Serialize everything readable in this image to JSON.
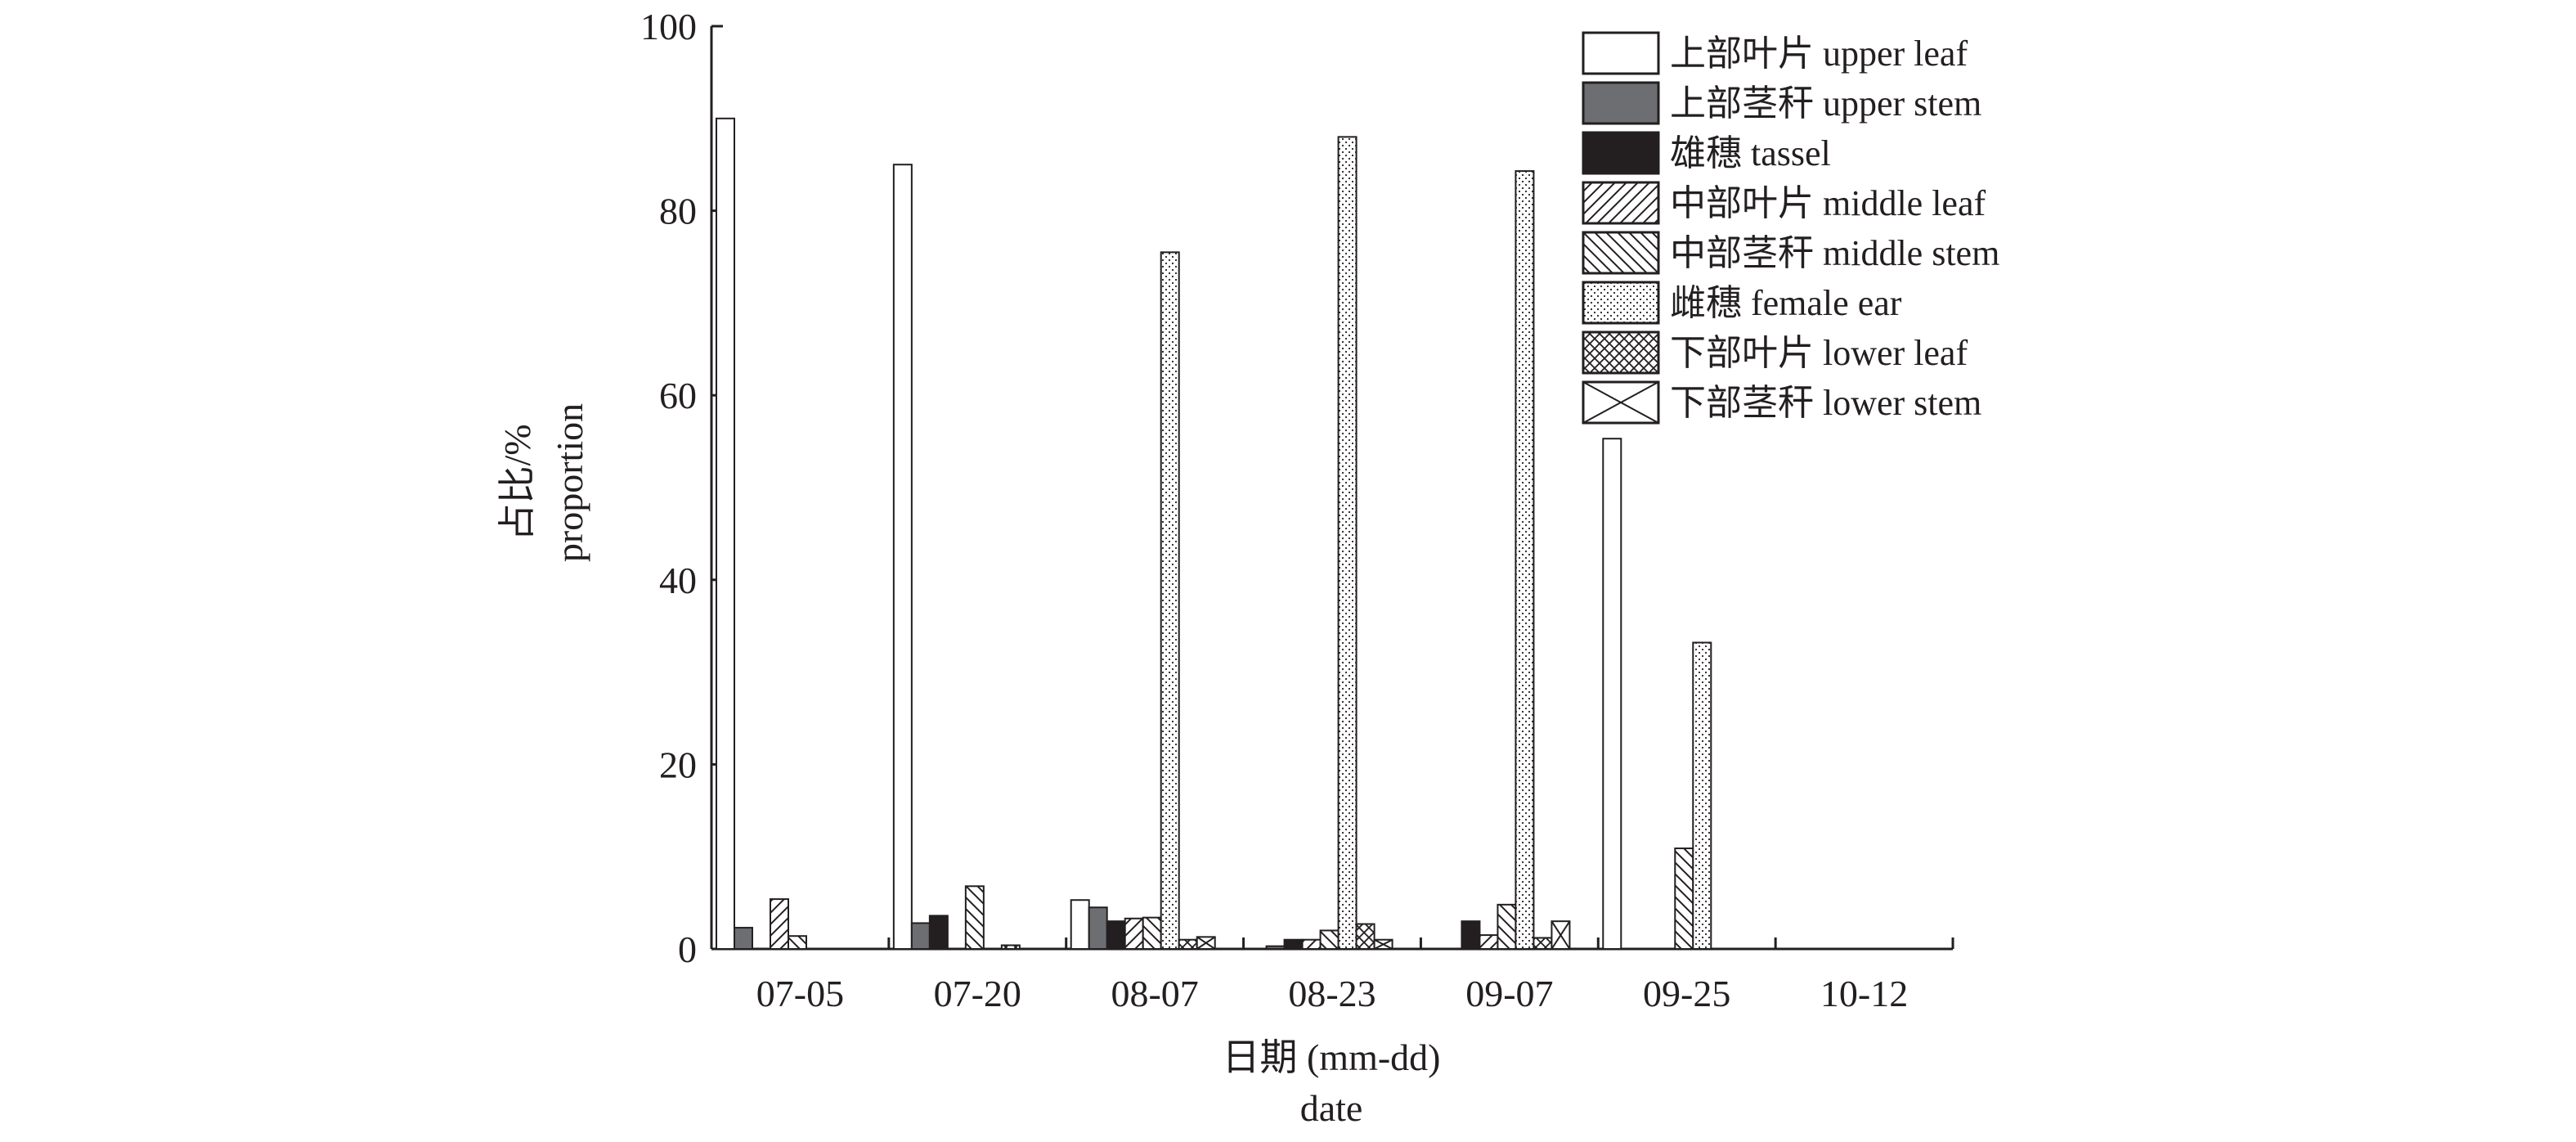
{
  "chart_data": {
    "type": "bar",
    "title": "",
    "xlabel": "日期 (mm-dd)",
    "xlabel_en": "date",
    "ylabel": "占比/%",
    "ylabel_en": "proportion",
    "ylim": [
      0,
      100
    ],
    "yticks": [
      0,
      20,
      40,
      60,
      80,
      100
    ],
    "legend_position": "top-right",
    "grid": false,
    "categories": [
      "07-05",
      "07-20",
      "08-07",
      "08-23",
      "09-07",
      "09-25",
      "10-12"
    ],
    "series": [
      {
        "name": "上部叶片 upper leaf",
        "fill": "white",
        "values": [
          90.0,
          85.0,
          5.3,
          0.0,
          0.0,
          55.3,
          0.0
        ]
      },
      {
        "name": "上部茎秆 upper stem",
        "fill": "dark-gray",
        "values": [
          2.3,
          2.8,
          4.5,
          0.3,
          0.0,
          0.0,
          0.0
        ]
      },
      {
        "name": "雄穗 tassel",
        "fill": "black",
        "values": [
          0.0,
          3.6,
          3.0,
          1.0,
          3.0,
          0.0,
          0.0
        ]
      },
      {
        "name": "中部叶片 middle leaf",
        "fill": "slash",
        "values": [
          5.4,
          0.0,
          3.3,
          1.0,
          1.5,
          0.0,
          0.0
        ]
      },
      {
        "name": "中部茎秆 middle stem",
        "fill": "backslash",
        "values": [
          1.4,
          6.8,
          3.4,
          2.0,
          4.8,
          10.9,
          0.0
        ]
      },
      {
        "name": "雌穗 female ear",
        "fill": "dots",
        "values": [
          0.0,
          0.0,
          75.5,
          88.0,
          84.3,
          33.2,
          0.0
        ]
      },
      {
        "name": "下部叶片 lower leaf",
        "fill": "crosshatch",
        "values": [
          0.0,
          0.4,
          1.0,
          2.7,
          1.2,
          0.0,
          0.0
        ]
      },
      {
        "name": "下部茎秆 lower stem",
        "fill": "x-cross",
        "values": [
          0.0,
          0.0,
          1.3,
          1.0,
          3.0,
          0.0,
          0.0
        ]
      }
    ]
  }
}
